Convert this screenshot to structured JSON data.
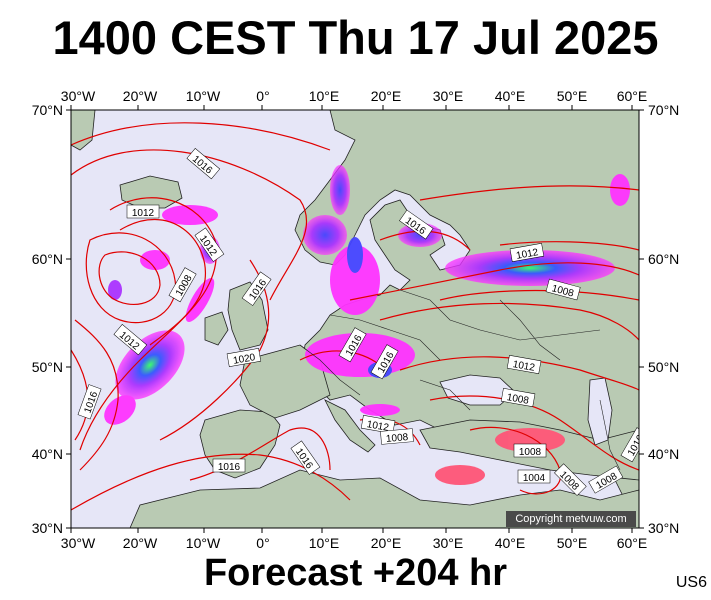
{
  "title": "1400 CEST Thu 17 Jul 2025",
  "forecast": "Forecast +204 hr",
  "corner_code": "US6",
  "copyright": "Copyright metvuw.com",
  "lon_labels": [
    "30°W",
    "20°W",
    "10°W",
    "0°",
    "10°E",
    "20°E",
    "30°E",
    "40°E",
    "50°E",
    "60°E"
  ],
  "lat_labels": [
    "70°N",
    "60°N",
    "50°N",
    "40°N",
    "30°N"
  ],
  "isobar_labels": [
    {
      "text": "1016"
    },
    {
      "text": "1012"
    },
    {
      "text": "1012"
    },
    {
      "text": "1008"
    },
    {
      "text": "1016"
    },
    {
      "text": "1012"
    },
    {
      "text": "1016"
    },
    {
      "text": "1020"
    },
    {
      "text": "1016"
    },
    {
      "text": "1016"
    },
    {
      "text": "1016"
    },
    {
      "text": "1016"
    },
    {
      "text": "1012"
    },
    {
      "text": "1008"
    },
    {
      "text": "1012"
    },
    {
      "text": "1008"
    },
    {
      "text": "1012"
    },
    {
      "text": "1008"
    },
    {
      "text": "1008"
    },
    {
      "text": "1004"
    },
    {
      "text": "1008"
    },
    {
      "text": "1008"
    },
    {
      "text": "1016"
    },
    {
      "text": "1016"
    }
  ],
  "colors": {
    "sea": "#e6e6f7",
    "land": "#b7c9b0",
    "isobar": "#e00000",
    "rain": "#ff00ff"
  }
}
